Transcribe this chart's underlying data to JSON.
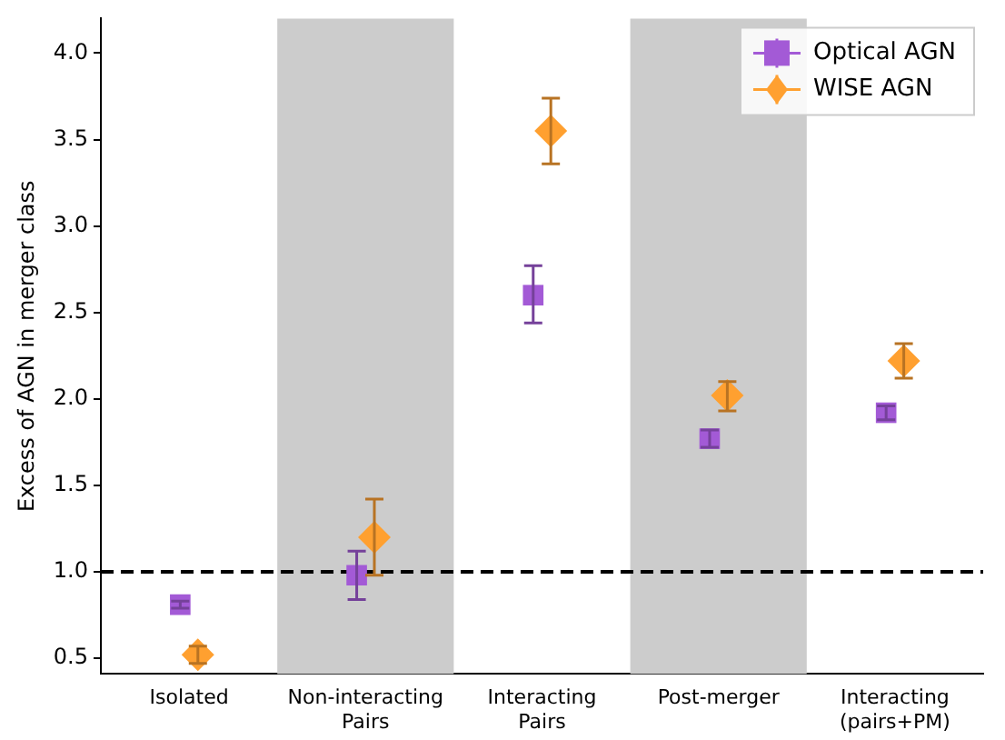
{
  "chart_data": {
    "type": "scatter",
    "ylabel": "Excess of AGN in merger class",
    "categories": [
      "Isolated",
      "Non-interacting Pairs",
      "Interacting Pairs",
      "Post-merger",
      "Interacting (pairs+PM)"
    ],
    "series": [
      {
        "name": "Optical AGN",
        "color": "#a35ad6",
        "marker": "square",
        "values": [
          0.81,
          0.98,
          2.6,
          1.77,
          1.92
        ],
        "errors": [
          0.02,
          [
            0.84,
            1.12
          ],
          [
            2.44,
            2.77
          ],
          0.05,
          0.04
        ]
      },
      {
        "name": "WISE AGN",
        "color": "#ffa030",
        "marker": "diamond",
        "values": [
          0.52,
          1.2,
          3.55,
          2.02,
          2.22
        ],
        "errors": [
          0.05,
          [
            0.98,
            1.42
          ],
          [
            3.36,
            3.74
          ],
          [
            1.93,
            2.1
          ],
          [
            2.12,
            2.32
          ]
        ]
      }
    ],
    "ylim": [
      0.41,
      4.2
    ],
    "yticks": [
      0.5,
      {
        "value": 1,
        "label": "1.0"
      },
      1.5,
      {
        "value": 2,
        "label": "2.0"
      },
      2.5,
      {
        "value": 3,
        "label": "3.0"
      },
      3.5,
      {
        "value": 4,
        "label": "4.0"
      }
    ],
    "ref_lines": [
      {
        "axis": "y",
        "value": 1.0,
        "color": "#000000",
        "line_style": "dashed"
      }
    ],
    "bands": [
      {
        "axis": "x",
        "from": "Non-interacting Pairs",
        "to": "Non-interacting Pairs",
        "color": "#cccccc"
      },
      {
        "axis": "x",
        "from": "Post-merger",
        "to": "Post-merger",
        "color": "#cccccc"
      }
    ],
    "legend": "top right",
    "grid": false
  }
}
